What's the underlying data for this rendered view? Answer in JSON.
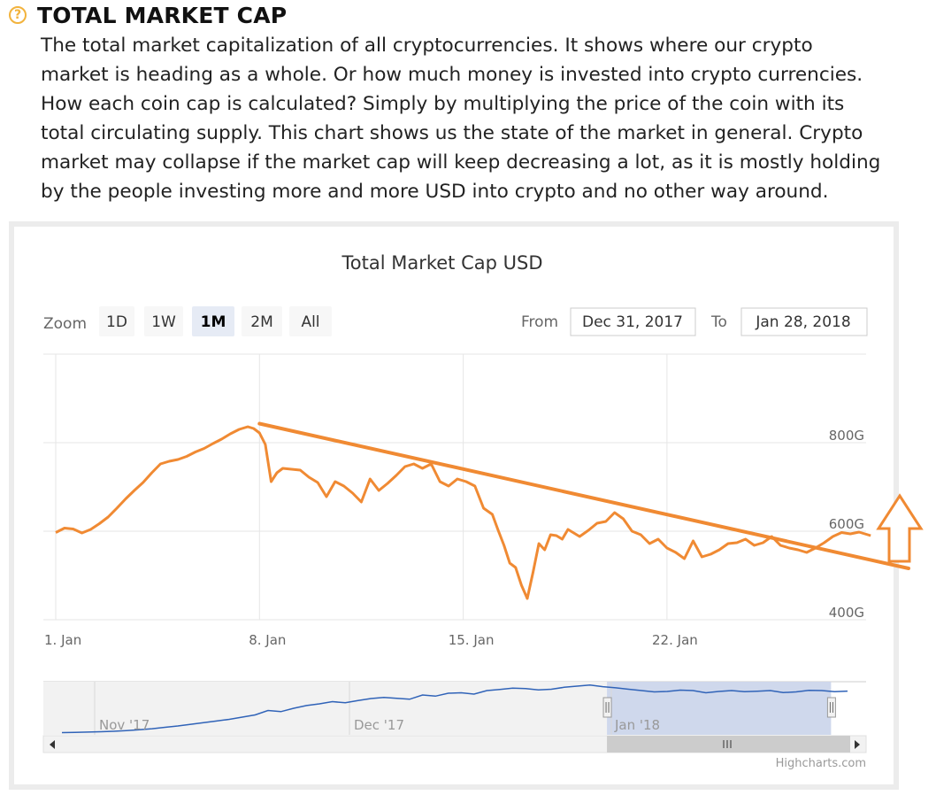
{
  "header": {
    "icon": "question-circle-icon",
    "title": "TOTAL MARKET CAP",
    "description_lines": [
      "The total market capitalization of all cryptocurrencies. It shows where our crypto",
      "market is heading as a whole. Or how much money is invested into crypto currencies.",
      "How each coin cap is calculated? Simply by multiplying the price of the coin with its",
      "total circulating supply. This chart shows us the state of the market in general. Crypto",
      "market may collapse if the market cap will keep decreasing a lot, as it is mostly holding",
      "by the people investing more and more USD into crypto and no other way around."
    ]
  },
  "colors": {
    "accent": "#f08a33",
    "navigator_line": "#3063b8",
    "navigator_mask": "#ccd6eb",
    "grid": "#e6e6e6",
    "selected_zoom_bg": "#e6ebf5"
  },
  "controls": {
    "zoom_label": "Zoom",
    "zoom_buttons": [
      "1D",
      "1W",
      "1M",
      "2M",
      "All"
    ],
    "selected_zoom": "1M",
    "from_label": "From",
    "from_value": "Dec 31, 2017",
    "to_label": "To",
    "to_value": "Jan 28, 2018"
  },
  "chart_data": {
    "type": "line",
    "title": "Total Market Cap USD",
    "x_start_day": 0,
    "x_end_day": 28,
    "ylim": [
      400,
      1000
    ],
    "y_unit": "G",
    "ytick_values": [
      400,
      600,
      800
    ],
    "ytick_labels": [
      "400G",
      "600G",
      "800G"
    ],
    "xtick_labels": [
      "1. Jan",
      "8. Jan",
      "15. Jan",
      "22. Jan"
    ],
    "xtick_days": [
      0,
      7,
      14,
      21
    ],
    "series": [
      {
        "name": "Total Market Cap",
        "x_days": [
          0,
          0.3,
          0.6,
          0.9,
          1.2,
          1.5,
          1.8,
          2.1,
          2.4,
          2.7,
          3.0,
          3.3,
          3.6,
          3.9,
          4.2,
          4.5,
          4.8,
          5.1,
          5.4,
          5.7,
          6.0,
          6.3,
          6.6,
          6.8,
          7.0,
          7.2,
          7.4,
          7.6,
          7.8,
          8.1,
          8.4,
          8.7,
          9.0,
          9.3,
          9.6,
          9.9,
          10.2,
          10.5,
          10.8,
          11.1,
          11.4,
          11.7,
          12.0,
          12.3,
          12.6,
          12.9,
          13.2,
          13.5,
          13.8,
          14.1,
          14.4,
          14.7,
          15.0,
          15.2,
          15.4,
          15.6,
          15.8,
          16.0,
          16.2,
          16.4,
          16.6,
          16.8,
          17.0,
          17.2,
          17.4,
          17.6,
          17.8,
          18.0,
          18.3,
          18.6,
          18.9,
          19.2,
          19.5,
          19.8,
          20.1,
          20.4,
          20.7,
          21.0,
          21.3,
          21.6,
          21.9,
          22.2,
          22.5,
          22.8,
          23.1,
          23.4,
          23.7,
          24.0,
          24.3,
          24.6,
          24.9,
          25.2,
          25.5,
          25.8,
          26.1,
          26.4,
          26.7,
          27.0,
          27.3,
          27.6,
          28.0
        ],
        "values": [
          597,
          607,
          605,
          596,
          604,
          617,
          632,
          652,
          673,
          692,
          710,
          732,
          752,
          758,
          762,
          769,
          779,
          787,
          798,
          808,
          820,
          830,
          836,
          832,
          822,
          796,
          712,
          732,
          742,
          740,
          738,
          722,
          710,
          678,
          712,
          702,
          686,
          666,
          718,
          692,
          708,
          726,
          746,
          752,
          742,
          752,
          712,
          702,
          718,
          712,
          702,
          652,
          638,
          602,
          568,
          528,
          518,
          478,
          448,
          508,
          572,
          558,
          592,
          590,
          582,
          604,
          596,
          588,
          602,
          618,
          622,
          642,
          628,
          600,
          592,
          572,
          582,
          562,
          552,
          538,
          578,
          542,
          548,
          558,
          572,
          574,
          582,
          568,
          574,
          588,
          568,
          562,
          558,
          552,
          562,
          574,
          588,
          597,
          594,
          598,
          590
        ]
      }
    ],
    "annotations": [
      {
        "type": "trend-line",
        "from_day": 7.0,
        "from_value": 843,
        "to_day": 29.3,
        "to_value": 516
      },
      {
        "type": "up-arrow",
        "label": ""
      }
    ],
    "navigator": {
      "xtick_labels": [
        "Nov '17",
        "Dec '17",
        "Jan '18"
      ],
      "values": [
        500,
        502,
        505,
        508,
        512,
        518,
        526,
        535,
        548,
        560,
        575,
        590,
        605,
        620,
        640,
        660,
        700,
        690,
        720,
        745,
        760,
        780,
        770,
        790,
        808,
        818,
        810,
        802,
        840,
        830,
        856,
        860,
        848,
        880,
        890,
        902,
        898,
        886,
        892,
        910,
        920,
        930,
        915,
        905,
        892,
        880,
        868,
        872,
        884,
        880,
        860,
        872,
        880,
        870,
        874,
        880,
        862,
        868,
        882,
        880,
        870,
        875
      ],
      "selected_range_fraction": [
        0.685,
        0.98
      ]
    },
    "credits": "Highcharts.com",
    "grid": true
  }
}
